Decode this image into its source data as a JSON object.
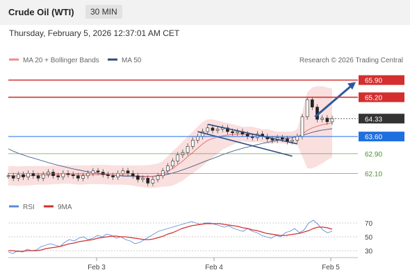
{
  "header": {
    "title": "Crude Oil (WTI)",
    "timeframe": "30 MIN",
    "datetime": "Thursday, February 5, 2026 12:37:01 AM CET"
  },
  "legend": {
    "ma20": "MA 20 + Bollinger Bands",
    "ma50": "MA 50",
    "credit": "Research © 2026 Trading Central",
    "rsi": "RSI",
    "ma9": "9MA"
  },
  "colors": {
    "resistance": "#d32f2f",
    "support": "#4a8f2a",
    "current_price": "#333333",
    "pivot": "#1e6fe0",
    "bollinger": "#f4b8b8",
    "ma50": "#2b4b7a",
    "rsi": "#5b8bd9",
    "rsi_ma": "#d32f2f",
    "channel": "#2b4b7a",
    "arrow": "#2c5aa0"
  },
  "chart_data": [
    {
      "type": "line",
      "title": "Crude Oil (WTI)",
      "x_ticks": [
        "Feb 3",
        "Feb 4",
        "Feb 5"
      ],
      "y_range": [
        61.6,
        66.2
      ],
      "levels": [
        {
          "value": 65.9,
          "label": "65.90",
          "kind": "resistance"
        },
        {
          "value": 65.2,
          "label": "65.20",
          "kind": "resistance"
        },
        {
          "value": 64.33,
          "label": "64.33",
          "kind": "current"
        },
        {
          "value": 63.6,
          "label": "63.60",
          "kind": "pivot"
        },
        {
          "value": 62.9,
          "label": "62.90",
          "kind": "support"
        },
        {
          "value": 62.1,
          "label": "62.10",
          "kind": "support"
        }
      ],
      "series": [
        {
          "name": "MA 20 + Bollinger Bands"
        },
        {
          "name": "MA 50"
        }
      ],
      "price": [
        62.0,
        61.9,
        62.05,
        61.95,
        62.1,
        62.0,
        61.9,
        62.05,
        62.15,
        62.0,
        61.95,
        62.1,
        62.05,
        62.0,
        61.9,
        62.0,
        62.1,
        62.2,
        62.15,
        62.05,
        62.0,
        61.95,
        62.1,
        62.2,
        62.1,
        62.0,
        61.85,
        61.9,
        61.7,
        61.85,
        62.0,
        62.2,
        62.4,
        62.6,
        62.85,
        62.95,
        63.2,
        63.45,
        63.6,
        63.8,
        63.95,
        63.85,
        63.9,
        63.95,
        63.8,
        63.75,
        63.8,
        63.7,
        63.6,
        63.55,
        63.7,
        63.6,
        63.5,
        63.45,
        63.55,
        63.5,
        63.4,
        63.45,
        63.6,
        64.4,
        65.1,
        64.8,
        64.3,
        64.35,
        64.2,
        64.33
      ],
      "ma20": [
        62.0,
        62.0,
        61.98,
        62.0,
        62.0,
        62.02,
        62.03,
        62.03,
        62.03,
        62.04,
        62.04,
        62.05,
        62.05,
        62.04,
        62.03,
        62.03,
        62.04,
        62.05,
        62.05,
        62.05,
        62.04,
        62.03,
        62.03,
        62.03,
        62.02,
        62.01,
        61.99,
        61.98,
        61.97,
        61.98,
        62.01,
        62.08,
        62.18,
        62.3,
        62.45,
        62.6,
        62.78,
        62.95,
        63.12,
        63.3,
        63.44,
        63.52,
        63.58,
        63.63,
        63.66,
        63.68,
        63.7,
        63.7,
        63.69,
        63.68,
        63.66,
        63.63,
        63.6,
        63.58,
        63.57,
        63.56,
        63.55,
        63.55,
        63.58,
        63.7,
        63.85,
        63.95,
        64.02,
        64.08,
        64.12,
        64.15
      ],
      "bb_upper": [
        62.4,
        62.4,
        62.38,
        62.4,
        62.4,
        62.4,
        62.4,
        62.4,
        62.4,
        62.42,
        62.42,
        62.42,
        62.42,
        62.42,
        62.42,
        62.42,
        62.42,
        62.44,
        62.44,
        62.44,
        62.44,
        62.42,
        62.42,
        62.42,
        62.42,
        62.42,
        62.42,
        62.42,
        62.44,
        62.46,
        62.5,
        62.6,
        62.8,
        63.0,
        63.2,
        63.4,
        63.6,
        63.8,
        64.0,
        64.2,
        64.3,
        64.3,
        64.25,
        64.2,
        64.15,
        64.1,
        64.05,
        64.0,
        64.0,
        64.0,
        63.95,
        63.9,
        63.9,
        63.85,
        63.8,
        63.8,
        63.8,
        63.8,
        63.9,
        64.6,
        65.4,
        65.6,
        65.65,
        65.65,
        65.6,
        65.55
      ],
      "bb_lower": [
        61.6,
        61.6,
        61.58,
        61.6,
        61.6,
        61.62,
        61.64,
        61.64,
        61.64,
        61.66,
        61.66,
        61.68,
        61.68,
        61.66,
        61.64,
        61.64,
        61.66,
        61.66,
        61.66,
        61.66,
        61.64,
        61.64,
        61.64,
        61.64,
        61.62,
        61.6,
        61.56,
        61.54,
        61.5,
        61.5,
        61.52,
        61.56,
        61.56,
        61.6,
        61.7,
        61.8,
        61.96,
        62.1,
        62.24,
        62.4,
        62.58,
        62.74,
        62.9,
        63.06,
        63.17,
        63.26,
        63.35,
        63.4,
        63.38,
        63.36,
        63.37,
        63.36,
        63.3,
        63.31,
        63.34,
        63.32,
        63.3,
        63.3,
        63.26,
        62.8,
        62.3,
        62.3,
        62.39,
        62.51,
        62.64,
        62.75
      ],
      "ma50": [
        63.1,
        63.0,
        62.92,
        62.85,
        62.78,
        62.72,
        62.66,
        62.6,
        62.54,
        62.48,
        62.43,
        62.38,
        62.33,
        62.28,
        62.24,
        62.2,
        62.16,
        62.13,
        62.1,
        62.07,
        62.05,
        62.03,
        62.01,
        61.99,
        61.98,
        61.97,
        61.96,
        61.96,
        61.96,
        61.97,
        61.99,
        62.02,
        62.06,
        62.11,
        62.17,
        62.24,
        62.31,
        62.39,
        62.47,
        62.55,
        62.63,
        62.7,
        62.78,
        62.86,
        62.93,
        63.0,
        63.06,
        63.12,
        63.17,
        63.22,
        63.27,
        63.32,
        63.36,
        63.4,
        63.44,
        63.48,
        63.52,
        63.56,
        63.6,
        63.65,
        63.71,
        63.77,
        63.82,
        63.86,
        63.89,
        63.92
      ]
    },
    {
      "type": "line",
      "title": "RSI",
      "x_ticks": [
        "Feb 3",
        "Feb 4",
        "Feb 5"
      ],
      "y_range": [
        20,
        80
      ],
      "y_ticks": [
        70,
        50,
        30
      ],
      "series": [
        {
          "name": "RSI",
          "values": [
            28,
            26,
            30,
            28,
            32,
            30,
            31,
            36,
            38,
            40,
            38,
            36,
            42,
            46,
            44,
            48,
            50,
            46,
            48,
            52,
            50,
            54,
            52,
            48,
            50,
            46,
            44,
            40,
            42,
            46,
            50,
            54,
            58,
            60,
            62,
            64,
            66,
            68,
            70,
            72,
            70,
            68,
            70,
            70,
            68,
            66,
            64,
            66,
            62,
            60,
            58,
            62,
            58,
            56,
            52,
            50,
            48,
            52,
            50,
            56,
            58,
            62,
            56,
            60,
            70,
            74,
            68,
            60,
            56,
            58
          ]
        },
        {
          "name": "9MA",
          "values": [
            30,
            30,
            29,
            29,
            30,
            30,
            30,
            31,
            33,
            34,
            35,
            36,
            38,
            40,
            41,
            43,
            44,
            45,
            46,
            48,
            49,
            50,
            51,
            51,
            50,
            50,
            49,
            48,
            47,
            46,
            46,
            47,
            49,
            51,
            54,
            56,
            59,
            62,
            64,
            66,
            67,
            68,
            69,
            69,
            69,
            69,
            68,
            67,
            66,
            65,
            63,
            62,
            60,
            59,
            57,
            55,
            54,
            53,
            52,
            52,
            53,
            54,
            55,
            57,
            59,
            62,
            64,
            64,
            63,
            61
          ]
        }
      ]
    }
  ]
}
